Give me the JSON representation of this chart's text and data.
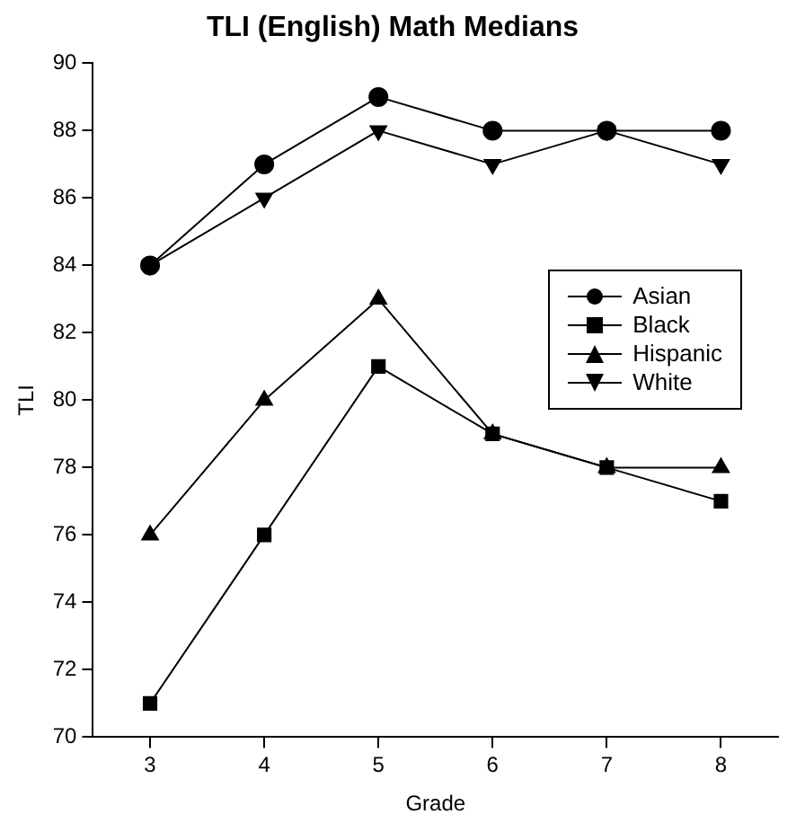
{
  "chart_data": {
    "type": "line",
    "title": "TLI (English) Math Medians",
    "xlabel": "Grade",
    "ylabel": "TLI",
    "x": [
      3,
      4,
      5,
      6,
      7,
      8
    ],
    "xlim": [
      2.5,
      8.5
    ],
    "xticks": [
      3,
      4,
      5,
      6,
      7,
      8
    ],
    "ylim": [
      70,
      90
    ],
    "yticks": [
      70,
      72,
      74,
      76,
      78,
      80,
      82,
      84,
      86,
      88,
      90
    ],
    "grid": false,
    "legend": "right",
    "line_style": "solid",
    "series": [
      {
        "name": "Asian",
        "color": "#000000",
        "marker": "circle",
        "values": [
          84,
          87,
          89,
          88,
          88,
          88
        ]
      },
      {
        "name": "Black",
        "color": "#000000",
        "marker": "square",
        "values": [
          71,
          76,
          81,
          79,
          78,
          77
        ]
      },
      {
        "name": "Hispanic",
        "color": "#000000",
        "marker": "triangle",
        "values": [
          76,
          80,
          83,
          79,
          78,
          78
        ]
      },
      {
        "name": "White",
        "color": "#000000",
        "marker": "triangle-down",
        "values": [
          84,
          86,
          88,
          87,
          88,
          87
        ]
      }
    ]
  }
}
